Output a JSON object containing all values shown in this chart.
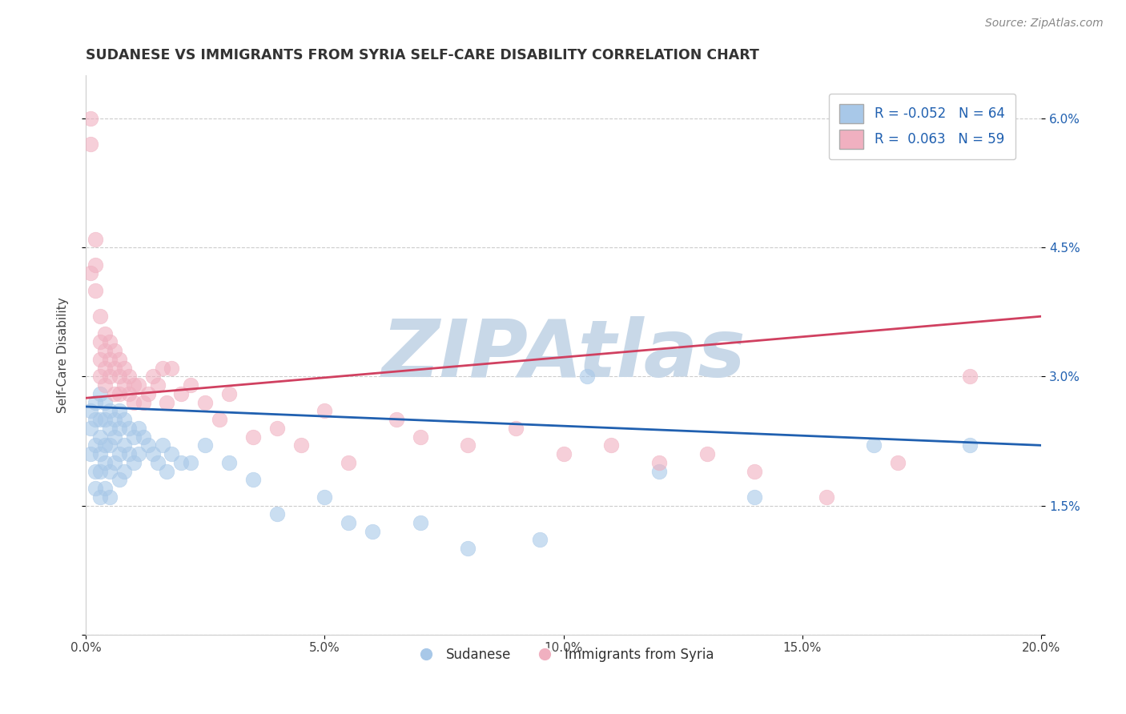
{
  "title": "SUDANESE VS IMMIGRANTS FROM SYRIA SELF-CARE DISABILITY CORRELATION CHART",
  "source": "Source: ZipAtlas.com",
  "xlabel_sudanese": "Sudanese",
  "xlabel_syria": "Immigrants from Syria",
  "ylabel": "Self-Care Disability",
  "xmin": 0.0,
  "xmax": 0.2,
  "ymin": 0.0,
  "ymax": 0.065,
  "xticks": [
    0.0,
    0.05,
    0.1,
    0.15,
    0.2
  ],
  "yticks": [
    0.0,
    0.015,
    0.03,
    0.045,
    0.06
  ],
  "ytick_labels_right": [
    "",
    "1.5%",
    "3.0%",
    "4.5%",
    "6.0%"
  ],
  "xtick_labels": [
    "0.0%",
    "5.0%",
    "10.0%",
    "15.0%",
    "20.0%"
  ],
  "R_blue": -0.052,
  "N_blue": 64,
  "R_pink": 0.063,
  "N_pink": 59,
  "blue_color": "#a8c8e8",
  "pink_color": "#f0b0c0",
  "blue_line_color": "#2060b0",
  "pink_line_color": "#d04060",
  "watermark": "ZIPAtlas",
  "watermark_color": "#c8d8e8",
  "blue_line_y0": 0.0265,
  "blue_line_y1": 0.022,
  "pink_line_y0": 0.0275,
  "pink_line_y1": 0.037,
  "blue_scatter_x": [
    0.001,
    0.001,
    0.001,
    0.002,
    0.002,
    0.002,
    0.002,
    0.002,
    0.003,
    0.003,
    0.003,
    0.003,
    0.003,
    0.003,
    0.004,
    0.004,
    0.004,
    0.004,
    0.004,
    0.005,
    0.005,
    0.005,
    0.005,
    0.005,
    0.006,
    0.006,
    0.006,
    0.007,
    0.007,
    0.007,
    0.007,
    0.008,
    0.008,
    0.008,
    0.009,
    0.009,
    0.01,
    0.01,
    0.011,
    0.011,
    0.012,
    0.013,
    0.014,
    0.015,
    0.016,
    0.017,
    0.018,
    0.02,
    0.022,
    0.025,
    0.03,
    0.035,
    0.04,
    0.05,
    0.055,
    0.06,
    0.07,
    0.08,
    0.095,
    0.105,
    0.12,
    0.14,
    0.165,
    0.185
  ],
  "blue_scatter_y": [
    0.026,
    0.024,
    0.021,
    0.027,
    0.025,
    0.022,
    0.019,
    0.017,
    0.028,
    0.025,
    0.023,
    0.021,
    0.019,
    0.016,
    0.027,
    0.025,
    0.022,
    0.02,
    0.017,
    0.026,
    0.024,
    0.022,
    0.019,
    0.016,
    0.025,
    0.023,
    0.02,
    0.026,
    0.024,
    0.021,
    0.018,
    0.025,
    0.022,
    0.019,
    0.024,
    0.021,
    0.023,
    0.02,
    0.024,
    0.021,
    0.023,
    0.022,
    0.021,
    0.02,
    0.022,
    0.019,
    0.021,
    0.02,
    0.02,
    0.022,
    0.02,
    0.018,
    0.014,
    0.016,
    0.013,
    0.012,
    0.013,
    0.01,
    0.011,
    0.03,
    0.019,
    0.016,
    0.022,
    0.022
  ],
  "pink_scatter_x": [
    0.001,
    0.001,
    0.001,
    0.002,
    0.002,
    0.002,
    0.003,
    0.003,
    0.003,
    0.003,
    0.004,
    0.004,
    0.004,
    0.004,
    0.005,
    0.005,
    0.005,
    0.006,
    0.006,
    0.006,
    0.007,
    0.007,
    0.007,
    0.008,
    0.008,
    0.009,
    0.009,
    0.01,
    0.01,
    0.011,
    0.012,
    0.013,
    0.014,
    0.015,
    0.016,
    0.017,
    0.018,
    0.02,
    0.022,
    0.025,
    0.028,
    0.03,
    0.035,
    0.04,
    0.045,
    0.05,
    0.055,
    0.065,
    0.07,
    0.08,
    0.09,
    0.1,
    0.11,
    0.12,
    0.13,
    0.14,
    0.155,
    0.17,
    0.185
  ],
  "pink_scatter_y": [
    0.06,
    0.057,
    0.042,
    0.046,
    0.043,
    0.04,
    0.037,
    0.034,
    0.032,
    0.03,
    0.035,
    0.033,
    0.031,
    0.029,
    0.034,
    0.032,
    0.03,
    0.033,
    0.031,
    0.028,
    0.032,
    0.03,
    0.028,
    0.031,
    0.029,
    0.03,
    0.028,
    0.029,
    0.027,
    0.029,
    0.027,
    0.028,
    0.03,
    0.029,
    0.031,
    0.027,
    0.031,
    0.028,
    0.029,
    0.027,
    0.025,
    0.028,
    0.023,
    0.024,
    0.022,
    0.026,
    0.02,
    0.025,
    0.023,
    0.022,
    0.024,
    0.021,
    0.022,
    0.02,
    0.021,
    0.019,
    0.016,
    0.02,
    0.03
  ]
}
